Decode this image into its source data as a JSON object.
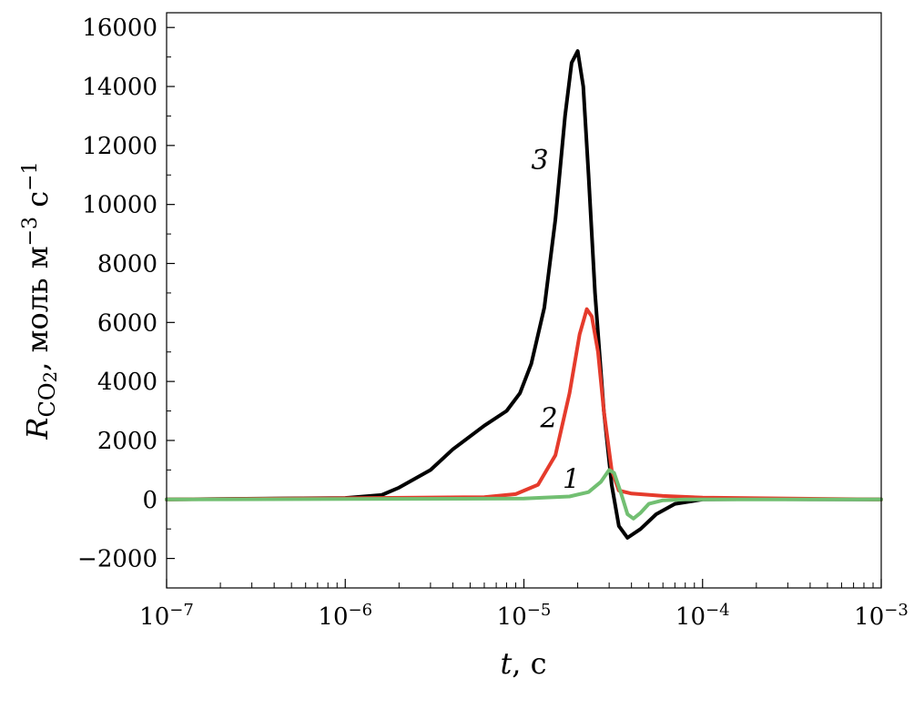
{
  "chart_data": {
    "type": "line",
    "xscale": "log",
    "xlim": [
      1e-07,
      0.001
    ],
    "ylim": [
      -3000,
      16500
    ],
    "grid": false,
    "xlabel": {
      "var": "t",
      "rest": ", с"
    },
    "ylabel": {
      "var": "R",
      "sub": "CO",
      "sub2": "2",
      "rest": ", моль м",
      "sup1": "−3",
      "mid": " с",
      "sup2": "−1"
    },
    "yticks": [
      {
        "value": -2000,
        "label": "−2000"
      },
      {
        "value": 0,
        "label": "0"
      },
      {
        "value": 2000,
        "label": "2000"
      },
      {
        "value": 4000,
        "label": "4000"
      },
      {
        "value": 6000,
        "label": "6000"
      },
      {
        "value": 8000,
        "label": "8000"
      },
      {
        "value": 10000,
        "label": "10000"
      },
      {
        "value": 12000,
        "label": "12000"
      },
      {
        "value": 14000,
        "label": "14000"
      },
      {
        "value": 16000,
        "label": "16000"
      }
    ],
    "xticks": [
      {
        "value": 1e-07,
        "base": "10",
        "exp": "−7"
      },
      {
        "value": 1e-06,
        "base": "10",
        "exp": "−6"
      },
      {
        "value": 1e-05,
        "base": "10",
        "exp": "−5"
      },
      {
        "value": 0.0001,
        "base": "10",
        "exp": "−4"
      },
      {
        "value": 0.001,
        "base": "10",
        "exp": "−3"
      }
    ],
    "series": [
      {
        "label": "3",
        "color": "#000000",
        "x": [
          1e-07,
          1e-06,
          1.6e-06,
          2e-06,
          3e-06,
          4e-06,
          6e-06,
          8e-06,
          9.5e-06,
          1.1e-05,
          1.3e-05,
          1.5e-05,
          1.7e-05,
          1.85e-05,
          2e-05,
          2.15e-05,
          2.3e-05,
          2.5e-05,
          2.8e-05,
          3.1e-05,
          3.4e-05,
          3.8e-05,
          4.5e-05,
          5.5e-05,
          7e-05,
          0.0001,
          0.0002,
          0.001
        ],
        "y": [
          0,
          50,
          150,
          400,
          1000,
          1700,
          2500,
          3000,
          3600,
          4600,
          6500,
          9500,
          13000,
          14800,
          15200,
          14000,
          11000,
          7000,
          3000,
          500,
          -900,
          -1300,
          -1000,
          -500,
          -150,
          0,
          10,
          0
        ]
      },
      {
        "label": "2",
        "color": "#e53b2c",
        "x": [
          1e-07,
          6e-06,
          9e-06,
          1.2e-05,
          1.5e-05,
          1.8e-05,
          2.05e-05,
          2.25e-05,
          2.4e-05,
          2.6e-05,
          2.8e-05,
          3.1e-05,
          3.4e-05,
          4e-05,
          6e-05,
          0.0001,
          0.001
        ],
        "y": [
          0,
          80,
          180,
          500,
          1500,
          3600,
          5600,
          6450,
          6200,
          5000,
          3000,
          1000,
          300,
          200,
          120,
          60,
          0
        ]
      },
      {
        "label": "1",
        "color": "#72bf72",
        "x": [
          1e-07,
          1e-05,
          1.8e-05,
          2.3e-05,
          2.7e-05,
          3e-05,
          3.2e-05,
          3.5e-05,
          3.8e-05,
          4.1e-05,
          4.5e-05,
          5e-05,
          6e-05,
          8e-05,
          0.0001,
          0.001
        ],
        "y": [
          0,
          30,
          100,
          250,
          600,
          1000,
          900,
          200,
          -500,
          -650,
          -450,
          -150,
          -30,
          0,
          0,
          0
        ]
      }
    ],
    "series_label_positions": [
      "near-peak-left",
      "near-peak-left",
      "near-peak-left"
    ]
  }
}
